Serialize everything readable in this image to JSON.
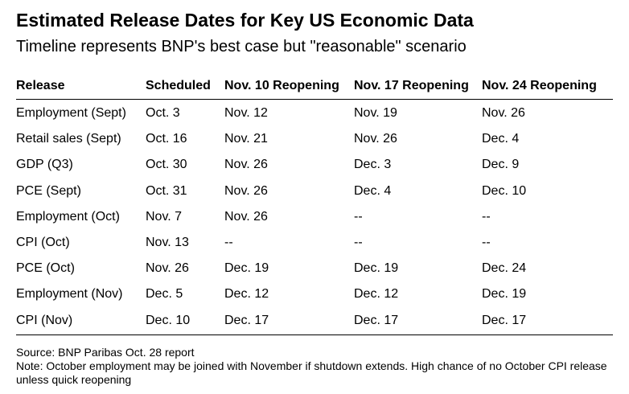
{
  "header": {
    "title": "Estimated Release Dates for Key US Economic Data",
    "subtitle": "Timeline represents BNP's best case but \"reasonable\" scenario"
  },
  "table": {
    "columns": [
      "Release",
      "Scheduled",
      "Nov. 10 Reopening",
      "Nov. 17 Reopening",
      "Nov. 24 Reopening"
    ],
    "rows": [
      [
        "Employment (Sept)",
        "Oct. 3",
        "Nov. 12",
        "Nov. 19",
        "Nov. 26"
      ],
      [
        "Retail sales (Sept)",
        "Oct. 16",
        "Nov. 21",
        "Nov. 26",
        "Dec. 4"
      ],
      [
        "GDP (Q3)",
        "Oct. 30",
        "Nov. 26",
        "Dec. 3",
        "Dec. 9"
      ],
      [
        "PCE (Sept)",
        "Oct. 31",
        "Nov. 26",
        "Dec. 4",
        "Dec. 10"
      ],
      [
        "Employment (Oct)",
        "Nov. 7",
        "Nov. 26",
        "--",
        "--"
      ],
      [
        "CPI (Oct)",
        "Nov. 13",
        "--",
        "--",
        "--"
      ],
      [
        "PCE (Oct)",
        "Nov. 26",
        "Dec. 19",
        "Dec. 19",
        "Dec. 24"
      ],
      [
        "Employment (Nov)",
        "Dec. 5",
        "Dec. 12",
        "Dec. 12",
        "Dec. 19"
      ],
      [
        "CPI (Nov)",
        "Dec. 10",
        "Dec. 17",
        "Dec. 17",
        "Dec. 17"
      ]
    ]
  },
  "footer": {
    "source": "Source: BNP Paribas Oct. 28 report",
    "note": "Note: October employment may be joined with November if shutdown extends. High chance of no October CPI release unless quick reopening"
  }
}
